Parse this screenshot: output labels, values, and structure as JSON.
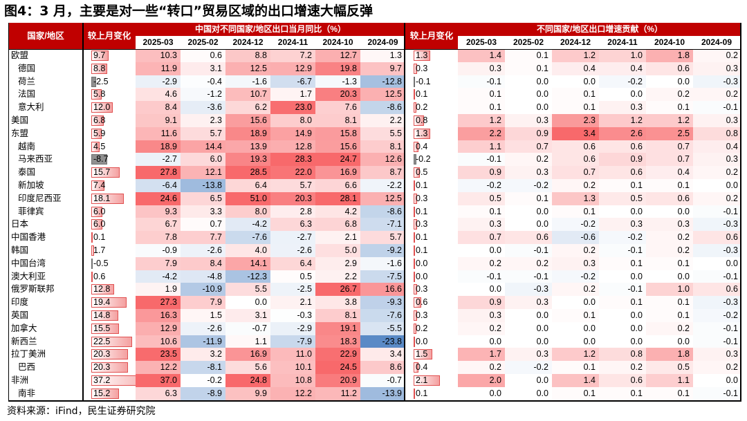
{
  "title": "图4：3 月，主要是对一些“转口”贸易区域的出口增速大幅反弹",
  "source": "资料来源：iFind，民生证券研究院",
  "headers": {
    "country": "国家/地区",
    "mom_change": "较上月变化",
    "yoy_group": "中国对不同国家/地区出口当月同比（%）",
    "contrib_group": "不同国家/地区出口增速贡献（%）",
    "months": [
      "2025-03",
      "2025-02",
      "2024-12",
      "2024-11",
      "2024-10",
      "2024-09"
    ]
  },
  "colors": {
    "header_red": "#c00000",
    "heat_positive": "#f8696b",
    "heat_negative": "#5a8ac6",
    "bar_positive": "#f4a0a0",
    "bar_negative": "#909090"
  },
  "chart_data": {
    "type": "table",
    "yoy_scale_max": 23.8,
    "contrib_scale_max": 3.4,
    "rows": [
      {
        "name": "欧盟",
        "indent": false,
        "yoy_change": "9.7",
        "yoy": [
          "10.3",
          "0.6",
          "8.8",
          "7.2",
          "12.7",
          "1.3"
        ],
        "contrib_change": "1.3",
        "contrib": [
          "1.4",
          "0.1",
          "1.2",
          "1.0",
          "1.8",
          "0.2"
        ]
      },
      {
        "name": "德国",
        "indent": true,
        "yoy_change": "8.8",
        "yoy": [
          "11.9",
          "3.1",
          "12.5",
          "12.9",
          "19.8",
          "9.7"
        ],
        "contrib_change": "0.3",
        "contrib": [
          "0.3",
          "0.1",
          "0.4",
          "0.4",
          "0.6",
          "0.3"
        ]
      },
      {
        "name": "荷兰",
        "indent": true,
        "yoy_change": "-2.5",
        "yoy": [
          "-2.9",
          "-0.4",
          "-1.6",
          "-6.7",
          "-1.3",
          "-12.8"
        ],
        "contrib_change": "-0.1",
        "contrib": [
          "-0.1",
          "0.0",
          "0.0",
          "-0.2",
          "0.0",
          "-0.3"
        ]
      },
      {
        "name": "法国",
        "indent": true,
        "yoy_change": "5.8",
        "yoy": [
          "4.6",
          "-1.2",
          "10.7",
          "1.7",
          "20.3",
          "12.5"
        ],
        "contrib_change": "0.1",
        "contrib": [
          "0.1",
          "0.0",
          "0.1",
          "0.0",
          "0.2",
          "0.2"
        ]
      },
      {
        "name": "意大利",
        "indent": true,
        "yoy_change": "12.0",
        "yoy": [
          "8.4",
          "-3.6",
          "6.2",
          "23.0",
          "7.6",
          "-8.6"
        ],
        "contrib_change": "0.2",
        "contrib": [
          "0.1",
          "0.0",
          "0.1",
          "0.3",
          "0.1",
          "-0.1"
        ]
      },
      {
        "name": "美国",
        "indent": false,
        "yoy_change": "6.8",
        "yoy": [
          "9.1",
          "2.3",
          "15.6",
          "8.0",
          "8.1",
          "2.2"
        ],
        "contrib_change": "0.8",
        "contrib": [
          "1.2",
          "0.3",
          "2.3",
          "1.2",
          "1.2",
          "0.3"
        ]
      },
      {
        "name": "东盟",
        "indent": false,
        "yoy_change": "5.9",
        "yoy": [
          "11.6",
          "5.7",
          "18.9",
          "14.9",
          "15.8",
          "5.5"
        ],
        "contrib_change": "1.3",
        "contrib": [
          "2.2",
          "0.9",
          "3.4",
          "2.6",
          "2.5",
          "0.8"
        ]
      },
      {
        "name": "越南",
        "indent": true,
        "yoy_change": "4.5",
        "yoy": [
          "18.9",
          "14.4",
          "13.9",
          "12.8",
          "15.6",
          "8.1"
        ],
        "contrib_change": "0.4",
        "contrib": [
          "1.1",
          "0.7",
          "0.6",
          "0.6",
          "0.7",
          "0.4"
        ]
      },
      {
        "name": "马来西亚",
        "indent": true,
        "yoy_change": "-8.7",
        "yoy": [
          "-2.7",
          "6.0",
          "19.3",
          "28.3",
          "24.7",
          "12.6"
        ],
        "contrib_change": "-0.2",
        "contrib": [
          "-0.1",
          "0.2",
          "0.6",
          "0.9",
          "0.7",
          "0.3"
        ]
      },
      {
        "name": "泰国",
        "indent": true,
        "yoy_change": "15.7",
        "yoy": [
          "27.8",
          "12.1",
          "28.5",
          "22.0",
          "16.9",
          "8.7"
        ],
        "contrib_change": "0.5",
        "contrib": [
          "0.9",
          "0.3",
          "0.7",
          "0.6",
          "0.4",
          "0.2"
        ]
      },
      {
        "name": "新加坡",
        "indent": true,
        "yoy_change": "7.4",
        "yoy": [
          "-6.4",
          "-13.8",
          "6.4",
          "5.7",
          "6.6",
          "-2.2"
        ],
        "contrib_change": "0.1",
        "contrib": [
          "-0.2",
          "-0.2",
          "0.2",
          "0.1",
          "0.1",
          "0.0"
        ]
      },
      {
        "name": "印度尼西亚",
        "indent": true,
        "yoy_change": "18.1",
        "yoy": [
          "24.6",
          "6.5",
          "51.0",
          "20.3",
          "28.1",
          "12.5"
        ],
        "contrib_change": "0.3",
        "contrib": [
          "0.5",
          "0.1",
          "1.3",
          "0.5",
          "0.6",
          "0.2"
        ]
      },
      {
        "name": "菲律宾",
        "indent": true,
        "yoy_change": "6.0",
        "yoy": [
          "9.3",
          "3.3",
          "8.0",
          "2.8",
          "4.2",
          "-8.6"
        ],
        "contrib_change": "0.1",
        "contrib": [
          "0.1",
          "0.0",
          "0.1",
          "0.0",
          "0.0",
          "-0.1"
        ]
      },
      {
        "name": "日本",
        "indent": false,
        "yoy_change": "6.0",
        "yoy": [
          "6.7",
          "0.7",
          "-4.2",
          "6.3",
          "6.8",
          "-7.1"
        ],
        "contrib_change": "0.3",
        "contrib": [
          "0.3",
          "0.0",
          "-0.2",
          "0.3",
          "0.3",
          "-0.3"
        ]
      },
      {
        "name": "中国香港",
        "indent": false,
        "yoy_change": "0.1",
        "yoy": [
          "7.8",
          "7.7",
          "-7.6",
          "-2.7",
          "2.1",
          "5.7"
        ],
        "contrib_change": "0.1",
        "contrib": [
          "0.7",
          "0.6",
          "-0.6",
          "-0.2",
          "0.2",
          "0.6"
        ]
      },
      {
        "name": "韩国",
        "indent": false,
        "yoy_change": "1.7",
        "yoy": [
          "-0.9",
          "-2.6",
          "4.0",
          "-2.6",
          "5.0",
          "-9.2"
        ],
        "contrib_change": "0.1",
        "contrib": [
          "0.0",
          "-0.1",
          "0.2",
          "-0.1",
          "0.2",
          "-0.3"
        ]
      },
      {
        "name": "中国台湾",
        "indent": false,
        "yoy_change": "-0.5",
        "yoy": [
          "7.9",
          "8.4",
          "14.1",
          "6.4",
          "2.9",
          "-1.6"
        ],
        "contrib_change": "0.0",
        "contrib": [
          "0.2",
          "0.2",
          "0.3",
          "0.1",
          "0.1",
          "0.0"
        ]
      },
      {
        "name": "澳大利亚",
        "indent": false,
        "yoy_change": "0.6",
        "yoy": [
          "-4.2",
          "-4.8",
          "-12.3",
          "0.5",
          "2.2",
          "-7.5"
        ],
        "contrib_change": "0.0",
        "contrib": [
          "-0.1",
          "-0.1",
          "-0.2",
          "0.0",
          "0.0",
          "-0.1"
        ]
      },
      {
        "name": "俄罗斯联邦",
        "indent": false,
        "yoy_change": "12.8",
        "yoy": [
          "1.9",
          "-10.9",
          "5.5",
          "-2.5",
          "26.7",
          "16.6"
        ],
        "contrib_change": "0.3",
        "contrib": [
          "0.0",
          "-0.3",
          "0.2",
          "-0.1",
          "1.0",
          "0.6"
        ]
      },
      {
        "name": "印度",
        "indent": false,
        "yoy_change": "19.4",
        "yoy": [
          "27.3",
          "7.9",
          "0.0",
          "2.1",
          "3.8",
          "-9.3"
        ],
        "contrib_change": "0.6",
        "contrib": [
          "0.9",
          "0.3",
          "0.0",
          "0.1",
          "0.1",
          "-0.3"
        ]
      },
      {
        "name": "英国",
        "indent": false,
        "yoy_change": "14.8",
        "yoy": [
          "16.3",
          "1.5",
          "3.1",
          "-0.3",
          "8.1",
          "-7.6"
        ],
        "contrib_change": "0.3",
        "contrib": [
          "0.3",
          "0.0",
          "0.1",
          "0.0",
          "0.1",
          "-0.2"
        ]
      },
      {
        "name": "加拿大",
        "indent": false,
        "yoy_change": "15.5",
        "yoy": [
          "12.9",
          "-2.6",
          "-0.7",
          "-2.9",
          "19.1",
          "-5.5"
        ],
        "contrib_change": "0.2",
        "contrib": [
          "0.2",
          "0.0",
          "0.0",
          "0.0",
          "0.2",
          "-0.1"
        ]
      },
      {
        "name": "新西兰",
        "indent": false,
        "yoy_change": "22.5",
        "yoy": [
          "10.6",
          "-11.9",
          "1.1",
          "-7.9",
          "18.3",
          "-23.8"
        ],
        "contrib_change": "0.0",
        "contrib": [
          "0.0",
          "0.0",
          "0.0",
          "0.0",
          "0.0",
          "-0.1"
        ]
      },
      {
        "name": "拉丁美洲",
        "indent": false,
        "yoy_change": "20.3",
        "yoy": [
          "23.5",
          "3.2",
          "16.9",
          "11.0",
          "22.9",
          "3.4"
        ],
        "contrib_change": "1.5",
        "contrib": [
          "1.7",
          "0.3",
          "1.2",
          "0.8",
          "1.8",
          "0.3"
        ]
      },
      {
        "name": "巴西",
        "indent": true,
        "yoy_change": "20.3",
        "yoy": [
          "12.2",
          "-8.1",
          "5.6",
          "10.1",
          "24.5",
          "8.6"
        ],
        "contrib_change": "0.4",
        "contrib": [
          "0.2",
          "-0.2",
          "0.1",
          "0.2",
          "0.5",
          "0.2"
        ]
      },
      {
        "name": "非洲",
        "indent": false,
        "yoy_change": "37.2",
        "yoy": [
          "37.0",
          "-0.2",
          "24.8",
          "10.8",
          "20.9",
          "-0.7"
        ],
        "contrib_change": "2.1",
        "contrib": [
          "2.0",
          "0.0",
          "1.4",
          "0.6",
          "1.1",
          "0.0"
        ]
      },
      {
        "name": "南非",
        "indent": true,
        "yoy_change": "15.2",
        "yoy": [
          "6.3",
          "-8.9",
          "9.9",
          "12.2",
          "11.2",
          "-13.9"
        ],
        "contrib_change": "0.1",
        "contrib": [
          "0.0",
          "0.0",
          "0.1",
          "0.1",
          "0.1",
          "-0.1"
        ]
      }
    ]
  }
}
